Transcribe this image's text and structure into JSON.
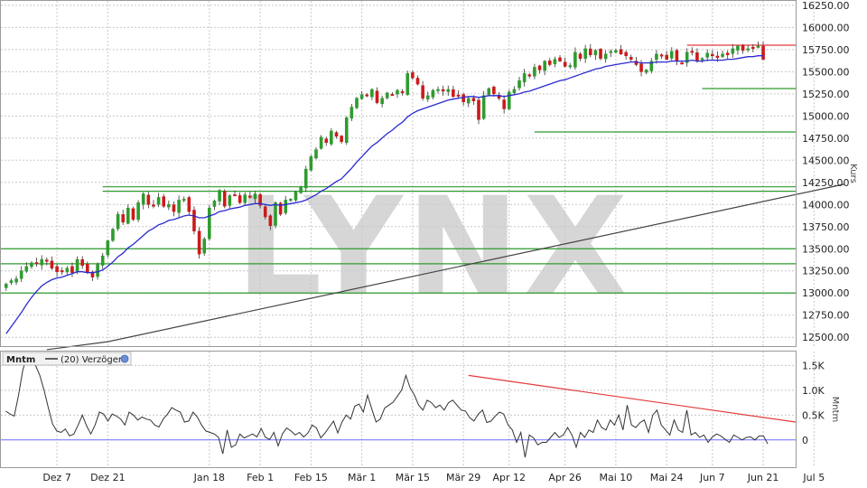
{
  "watermark": "LYNX",
  "price_axis_title": "Kurs",
  "momentum_axis_title": "Mntm",
  "legend": {
    "title": "Mntm",
    "series_label": "(20) Verzögert"
  },
  "colors": {
    "up": "#2e9b2e",
    "down": "#cc1a1a",
    "ma_short": "#2b2bd0",
    "ma_long": "#444444",
    "support": "#2e9b2e",
    "resistance": "#e43a3a",
    "momentum": "#333333",
    "zero_line": "#6b6bff"
  },
  "chart_data": [
    {
      "type": "candlestick",
      "title": "",
      "ylabel": "Kurs",
      "ylim": [
        12400,
        16300
      ],
      "y_ticks": [
        "16250.00",
        "16000.00",
        "15750.00",
        "15500.00",
        "15250.00",
        "15000.00",
        "14750.00",
        "14500.00",
        "14250.00",
        "14000.00",
        "13750.00",
        "13500.00",
        "13250.00",
        "13000.00",
        "12750.00",
        "12500.00"
      ],
      "x_ticks": [
        "Dez 7",
        "Dez 21",
        "Jan 18",
        "Feb 1",
        "Feb 15",
        "Mär 1",
        "Mär 15",
        "Mär 29",
        "Apr 12",
        "Apr 26",
        "Mai 10",
        "Mai 24",
        "Jun 7",
        "Jun 21",
        "Jul 5"
      ],
      "x_tick_index": [
        10,
        20,
        40,
        50,
        60,
        70,
        80,
        90,
        99,
        110,
        120,
        130,
        139,
        149,
        159
      ],
      "close": [
        13100,
        13140,
        13160,
        13250,
        13300,
        13340,
        13330,
        13380,
        13360,
        13280,
        13240,
        13250,
        13280,
        13230,
        13380,
        13310,
        13240,
        13180,
        13320,
        13420,
        13590,
        13720,
        13890,
        13800,
        13960,
        13830,
        14020,
        14120,
        14000,
        13980,
        14080,
        13980,
        14000,
        13920,
        14050,
        14060,
        13920,
        13700,
        13440,
        13610,
        13960,
        14040,
        14160,
        13980,
        14100,
        14110,
        14020,
        14110,
        14080,
        14120,
        13990,
        13860,
        13760,
        14020,
        13890,
        14050,
        14060,
        14140,
        14200,
        14400,
        14540,
        14620,
        14760,
        14700,
        14830,
        14770,
        14710,
        14980,
        15100,
        15200,
        15240,
        15230,
        15300,
        15150,
        15200,
        15260,
        15240,
        15290,
        15260,
        15480,
        15430,
        15360,
        15200,
        15230,
        15290,
        15300,
        15280,
        15300,
        15220,
        15230,
        15160,
        15200,
        15170,
        14960,
        15230,
        15310,
        15250,
        15200,
        15080,
        15270,
        15300,
        15400,
        15480,
        15450,
        15550,
        15520,
        15620,
        15580,
        15640,
        15620,
        15560,
        15570,
        15720,
        15650,
        15760,
        15690,
        15740,
        15650,
        15700,
        15730,
        15740,
        15700,
        15680,
        15640,
        15580,
        15500,
        15520,
        15620,
        15700,
        15690,
        15640,
        15730,
        15620,
        15600,
        15720,
        15730,
        15620,
        15650,
        15710,
        15680,
        15660,
        15700,
        15690,
        15760,
        15790,
        15740,
        15760,
        15770,
        15790,
        15640
      ],
      "ma_short": [
        12540,
        12620,
        12700,
        12780,
        12870,
        12950,
        13020,
        13080,
        13120,
        13150,
        13170,
        13180,
        13200,
        13220,
        13240,
        13240,
        13230,
        13230,
        13240,
        13260,
        13300,
        13350,
        13410,
        13450,
        13510,
        13550,
        13600,
        13650,
        13700,
        13730,
        13770,
        13790,
        13820,
        13830,
        13850,
        13870,
        13880,
        13870,
        13850,
        13850,
        13870,
        13890,
        13920,
        13930,
        13950,
        13960,
        13970,
        13990,
        14000,
        14010,
        14010,
        14000,
        13990,
        14000,
        13990,
        14000,
        14010,
        14020,
        14030,
        14050,
        14080,
        14110,
        14150,
        14180,
        14220,
        14260,
        14290,
        14350,
        14410,
        14480,
        14540,
        14600,
        14660,
        14700,
        14750,
        14800,
        14840,
        14890,
        14930,
        14990,
        15030,
        15060,
        15080,
        15100,
        15120,
        15140,
        15160,
        15180,
        15190,
        15200,
        15210,
        15220,
        15220,
        15210,
        15220,
        15230,
        15230,
        15230,
        15220,
        15230,
        15240,
        15250,
        15270,
        15280,
        15300,
        15320,
        15340,
        15360,
        15380,
        15400,
        15410,
        15430,
        15450,
        15470,
        15490,
        15510,
        15530,
        15540,
        15560,
        15570,
        15580,
        15590,
        15600,
        15610,
        15610,
        15600,
        15600,
        15600,
        15610,
        15610,
        15610,
        15620,
        15620,
        15620,
        15620,
        15630,
        15620,
        15620,
        15630,
        15630,
        15630,
        15630,
        15640,
        15640,
        15650,
        15660,
        15670,
        15670,
        15680,
        15680
      ],
      "ma_long_start": [
        20,
        12450
      ],
      "ma_long_end": [
        165,
        14230
      ],
      "support_lines": [
        {
          "y": 14200,
          "from": 19,
          "to": 175
        },
        {
          "y": 14150,
          "from": 19,
          "to": 175
        },
        {
          "y": 13500,
          "from": 0,
          "to": 175
        },
        {
          "y": 13330,
          "from": 0,
          "to": 175
        },
        {
          "y": 13000,
          "from": 0,
          "to": 175
        },
        {
          "y": 14820,
          "from": 104,
          "to": 175
        },
        {
          "y": 15310,
          "from": 137,
          "to": 175
        }
      ],
      "resistance_line": {
        "y": 15800,
        "from": 134,
        "to": 175
      }
    },
    {
      "type": "line",
      "title": "",
      "ylabel": "Mntm",
      "ylim": [
        -550,
        1780
      ],
      "y_ticks": [
        "1.5K",
        "1.0K",
        "0.5K",
        "0"
      ],
      "y_tick_values": [
        1500,
        1000,
        500,
        0
      ],
      "series": [
        {
          "name": "(20) Verzögert",
          "values": [
            580,
            520,
            480,
            900,
            1400,
            1700,
            1650,
            1500,
            1300,
            1000,
            650,
            320,
            180,
            150,
            220,
            80,
            120,
            300,
            500,
            280,
            120,
            300,
            560,
            520,
            380,
            520,
            480,
            420,
            300,
            560,
            500,
            400,
            460,
            420,
            400,
            300,
            260,
            420,
            520,
            650,
            600,
            560,
            360,
            380,
            560,
            460,
            300,
            180,
            150,
            120,
            50,
            -280,
            200,
            -150,
            -100,
            120,
            40,
            80,
            120,
            60,
            230,
            50,
            10,
            150,
            -120,
            120,
            240,
            180,
            100,
            150,
            60,
            140,
            300,
            240,
            40,
            140,
            260,
            380,
            140,
            360,
            500,
            420,
            680,
            720,
            560,
            900,
            620,
            360,
            420,
            640,
            700,
            760,
            880,
            1000,
            1300,
            1050,
            900,
            700,
            600,
            800,
            750,
            650,
            700,
            600,
            750,
            800,
            700,
            600,
            580,
            450,
            380,
            520,
            600,
            350,
            380,
            480,
            560,
            520,
            300,
            200,
            -50,
            150,
            -350,
            100,
            40,
            -100,
            -50,
            -50,
            50,
            150,
            50,
            100,
            250,
            100,
            -150,
            150,
            50,
            200,
            150,
            400,
            250,
            200,
            400,
            300,
            500,
            200,
            700,
            300,
            250,
            350,
            400,
            150,
            500,
            600,
            300,
            200,
            100,
            400,
            200,
            150,
            600,
            100,
            150,
            50,
            100,
            -50,
            60,
            120,
            80,
            10,
            -50,
            100,
            50,
            0,
            50,
            60,
            0,
            80,
            80,
            -80
          ]
        }
      ],
      "trendline": {
        "from": [
          91,
          1300
        ],
        "to": [
          175,
          360
        ]
      },
      "zero_line": 0
    }
  ]
}
